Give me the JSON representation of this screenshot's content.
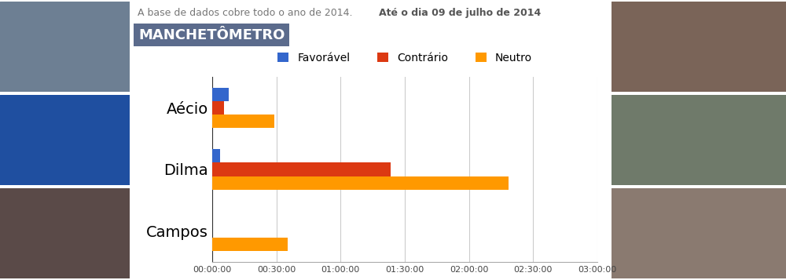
{
  "chart_data": {
    "type": "bar",
    "orientation": "horizontal",
    "title": "MANCHETÔMETRO",
    "subtitle": "A base de dados cobre todo o ano de 2014.",
    "annotations": [
      "Até o dia 09 de julho de 2014"
    ],
    "categories": [
      "Aécio",
      "Dilma",
      "Campos"
    ],
    "series": [
      {
        "name": "Favorável",
        "color": "#3366cc",
        "values": [
          7.7,
          3.5,
          0
        ]
      },
      {
        "name": "Contrário",
        "color": "#dc3912",
        "values": [
          5.4,
          83.5,
          0
        ]
      },
      {
        "name": "Neutro",
        "color": "#ff9900",
        "values": [
          29.2,
          138.5,
          35.4
        ]
      }
    ],
    "xlim": [
      0,
      180
    ],
    "xticks": [
      {
        "value": 0,
        "label": "00:00:00"
      },
      {
        "value": 30,
        "label": "00:30:00"
      },
      {
        "value": 60,
        "label": "01:00:00"
      },
      {
        "value": 90,
        "label": "01:30:00"
      },
      {
        "value": 120,
        "label": "02:00:00"
      },
      {
        "value": 150,
        "label": "02:30:00"
      },
      {
        "value": 180,
        "label": "03:00:00"
      }
    ],
    "grid": true,
    "legend": "top"
  }
}
